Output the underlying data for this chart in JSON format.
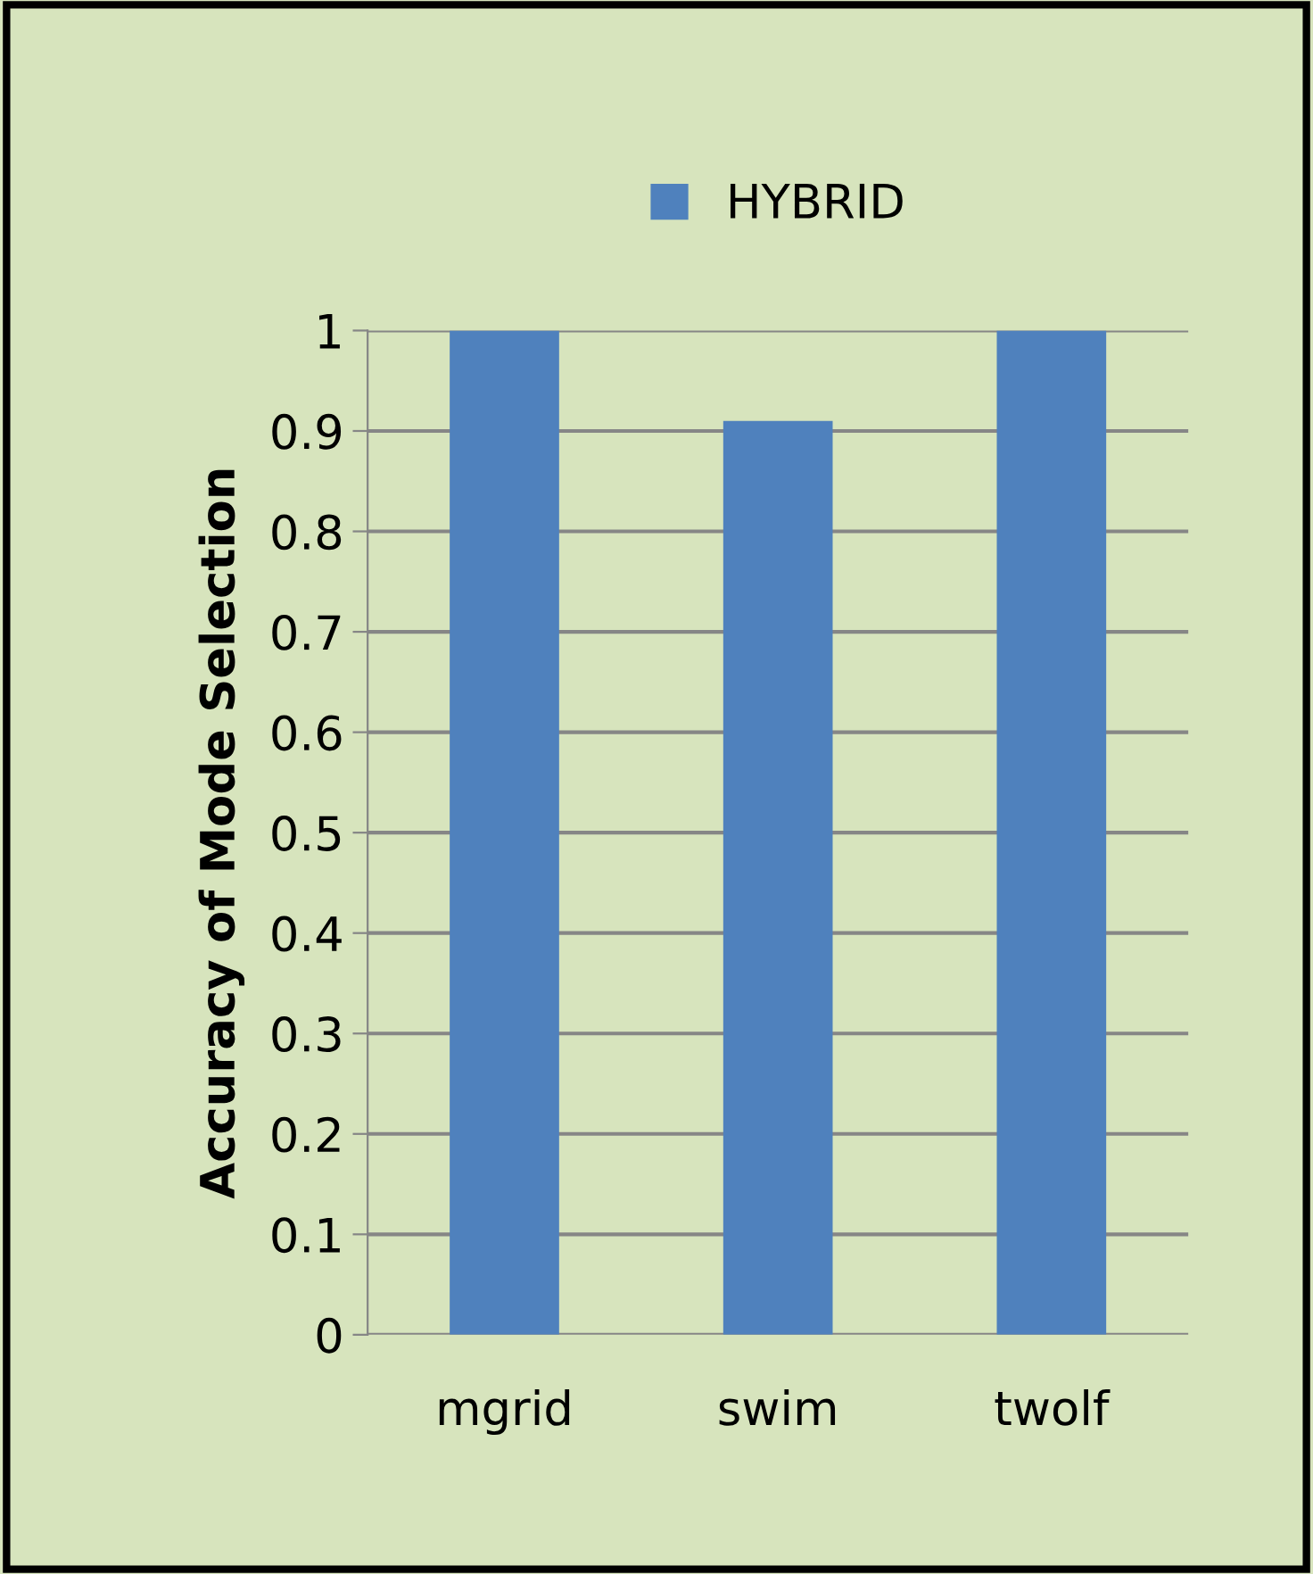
{
  "chart_data": {
    "type": "bar",
    "ylabel": "Accuracy of Mode Selection",
    "categories": [
      "mgrid",
      "swim",
      "twolf"
    ],
    "series": [
      {
        "name": "HYBRID",
        "color": "#4f81bd",
        "values": [
          1,
          0.91,
          1
        ]
      }
    ],
    "ylim": [
      0,
      1
    ],
    "yticks": [
      0,
      0.1,
      0.2,
      0.3,
      0.4,
      0.5,
      0.6,
      0.7,
      0.8,
      0.9,
      1
    ],
    "grid": "y",
    "legend": "top"
  }
}
